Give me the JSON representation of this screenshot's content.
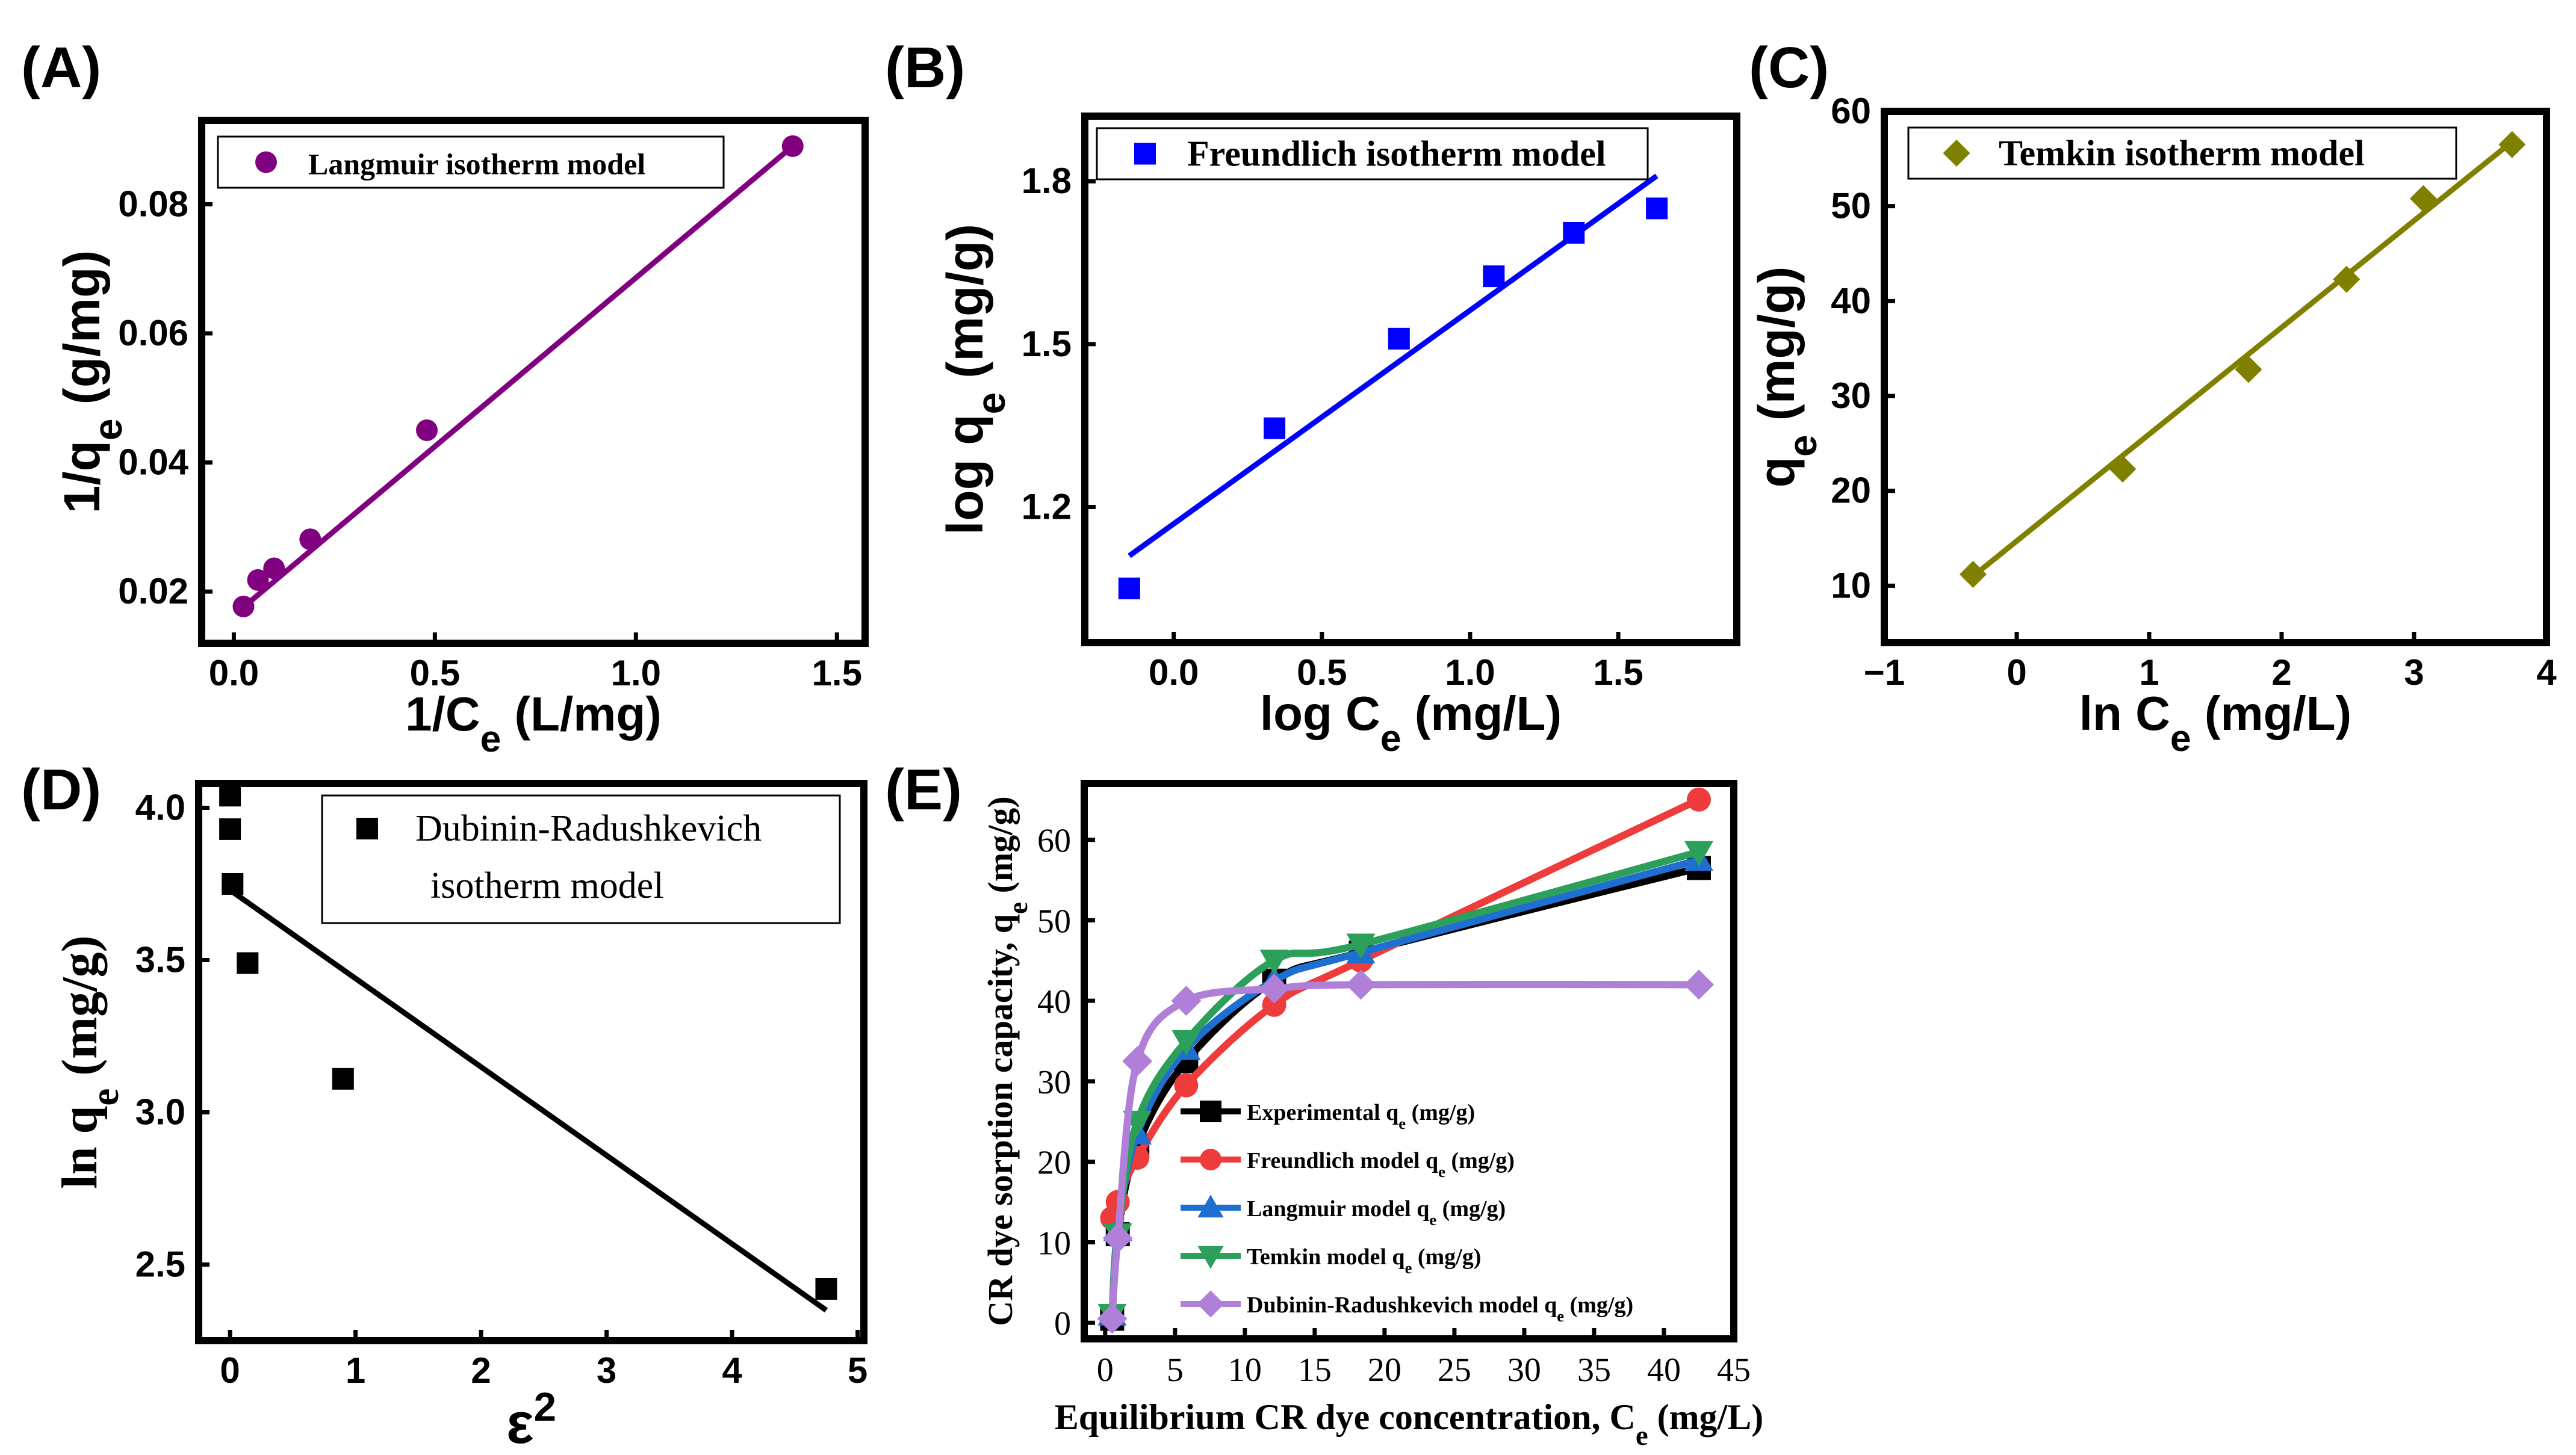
{
  "figure": {
    "panel_labels": [
      "(A)",
      "(B)",
      "(C)",
      "(D)",
      "(E)"
    ]
  },
  "chart_data": [
    {
      "id": "A",
      "type": "scatter",
      "title": "",
      "legend": [
        "Langmuir isotherm model"
      ],
      "xlabel": "1/Ce (L/mg)",
      "ylabel": "1/qe (g/mg)",
      "xlim": [
        -0.08,
        1.57
      ],
      "ylim": [
        0.012,
        0.093
      ],
      "xticks": [
        0.0,
        0.5,
        1.0,
        1.5
      ],
      "xtick_labels": [
        "0.0",
        "0.5",
        "1.0",
        "1.5"
      ],
      "yticks": [
        0.02,
        0.04,
        0.06,
        0.08
      ],
      "ytick_labels": [
        "0.02",
        "0.04",
        "0.06",
        "0.08"
      ],
      "series": [
        {
          "name": "Langmuir isotherm model",
          "marker": "circle",
          "color": "#800080",
          "x": [
            0.024,
            0.06,
            0.1,
            0.19,
            0.48,
            1.39
          ],
          "y": [
            0.0177,
            0.0218,
            0.0236,
            0.0281,
            0.045,
            0.089
          ],
          "fit": [
            [
              0.024,
              0.0176
            ],
            [
              1.39,
              0.089
            ]
          ]
        }
      ]
    },
    {
      "id": "B",
      "type": "scatter",
      "title": "",
      "legend": [
        "Freundlich isotherm model"
      ],
      "xlabel": "log Ce (mg/L)",
      "ylabel": "log qe (mg/g)",
      "xlim": [
        -0.3,
        1.9
      ],
      "ylim": [
        0.95,
        1.92
      ],
      "xticks": [
        0.0,
        0.5,
        1.0,
        1.5
      ],
      "xtick_labels": [
        "0.0",
        "0.5",
        "1.0",
        "1.5"
      ],
      "yticks": [
        1.2,
        1.5,
        1.8
      ],
      "ytick_labels": [
        "1.2",
        "1.5",
        "1.8"
      ],
      "series": [
        {
          "name": "Freundlich isotherm model",
          "marker": "square",
          "color": "#0000ff",
          "x": [
            -0.15,
            0.34,
            0.76,
            1.08,
            1.35,
            1.63
          ],
          "y": [
            1.05,
            1.345,
            1.51,
            1.625,
            1.705,
            1.75
          ],
          "fit": [
            [
              -0.15,
              1.11
            ],
            [
              1.63,
              1.81
            ]
          ]
        }
      ]
    },
    {
      "id": "C",
      "type": "scatter",
      "title": "",
      "legend": [
        "Temkin isotherm model"
      ],
      "xlabel": "ln Ce (mg/L)",
      "ylabel": "qe (mg/g)",
      "xlim": [
        -1.0,
        4.0
      ],
      "ylim": [
        4,
        60
      ],
      "xticks": [
        -1,
        0,
        1,
        2,
        3,
        4
      ],
      "xtick_labels": [
        "−1",
        "0",
        "1",
        "2",
        "3",
        "4"
      ],
      "yticks": [
        10,
        20,
        30,
        40,
        50,
        60
      ],
      "ytick_labels": [
        "10",
        "20",
        "30",
        "40",
        "50",
        "60"
      ],
      "series": [
        {
          "name": "Temkin isotherm model",
          "marker": "diamond",
          "color": "#808000",
          "x": [
            -0.33,
            0.8,
            1.75,
            2.49,
            3.07,
            3.74
          ],
          "y": [
            11.2,
            22.3,
            32.8,
            42.3,
            50.8,
            56.5
          ],
          "fit": [
            [
              -0.33,
              11.0
            ],
            [
              3.74,
              56.8
            ]
          ]
        }
      ]
    },
    {
      "id": "D",
      "type": "scatter",
      "title": "",
      "legend": [
        "Dubinin-Radushkevich",
        "isotherm model"
      ],
      "xlabel": "ε2",
      "ylabel": "ln qe (mg/g)",
      "xlim": [
        -0.25,
        5.05
      ],
      "ylim": [
        2.25,
        4.08
      ],
      "xticks": [
        0,
        1,
        2,
        3,
        4,
        5
      ],
      "xtick_labels": [
        "0",
        "1",
        "2",
        "3",
        "4",
        "5"
      ],
      "yticks": [
        2.5,
        3.0,
        3.5,
        4.0
      ],
      "ytick_labels": [
        "2.5",
        "3.0",
        "3.5",
        "4.0"
      ],
      "series": [
        {
          "name": "Dubinin-Radushkevich isotherm model",
          "marker": "square",
          "color": "#000000",
          "x": [
            0.0,
            0.0,
            0.02,
            0.14,
            0.9,
            4.75
          ],
          "y": [
            4.04,
            3.93,
            3.75,
            3.49,
            3.11,
            2.42
          ],
          "fit": [
            [
              0.0,
              3.73
            ],
            [
              4.75,
              2.35
            ]
          ]
        }
      ]
    },
    {
      "id": "E",
      "type": "line",
      "title": "",
      "xlabel": "Equilibrium CR dye concentration, Ce (mg/L)",
      "ylabel": "CR dye sorption capacity, qe (mg/g)",
      "xlim": [
        -1.5,
        45
      ],
      "ylim": [
        -2,
        67
      ],
      "xticks": [
        0,
        5,
        10,
        15,
        20,
        25,
        30,
        35,
        40,
        45
      ],
      "xtick_labels": [
        "0",
        "5",
        "10",
        "15",
        "20",
        "25",
        "30",
        "35",
        "40",
        "45"
      ],
      "yticks": [
        0,
        10,
        20,
        30,
        40,
        50,
        60
      ],
      "ytick_labels": [
        "0",
        "10",
        "20",
        "30",
        "40",
        "50",
        "60"
      ],
      "legend_position": "bottom-right",
      "x": [
        0.5,
        0.9,
        2.3,
        5.8,
        12.1,
        18.3,
        42.5
      ],
      "series": [
        {
          "name": "Experimental qe (mg/g)",
          "marker": "square",
          "color": "#000000",
          "values": [
            0.5,
            11.0,
            22.0,
            32.5,
            42.5,
            46.0,
            56.5
          ]
        },
        {
          "name": "Freundlich model qe (mg/g)",
          "marker": "circle",
          "color": "#ee3b3b",
          "values": [
            13.0,
            15.0,
            20.5,
            29.5,
            39.5,
            45.0,
            65.0
          ]
        },
        {
          "name": "Langmuir model qe (mg/g)",
          "marker": "triangle-up",
          "color": "#1f6fd1",
          "values": [
            1.0,
            11.5,
            23.5,
            34.0,
            42.5,
            46.0,
            57.5
          ]
        },
        {
          "name": "Temkin model qe (mg/g)",
          "marker": "triangle-down",
          "color": "#2ca05a",
          "values": [
            1.0,
            11.0,
            25.0,
            35.0,
            45.0,
            47.0,
            58.5
          ]
        },
        {
          "name": "Dubinin-Radushkevich model qe (mg/g)",
          "marker": "diamond",
          "color": "#b07fd8",
          "values": [
            0.5,
            10.5,
            32.5,
            40.0,
            41.5,
            42.0,
            42.0
          ]
        }
      ]
    }
  ]
}
